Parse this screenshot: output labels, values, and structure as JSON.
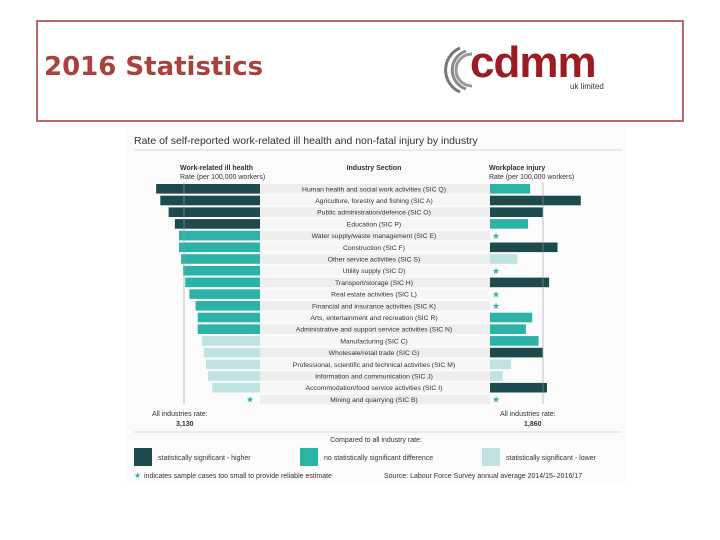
{
  "slide": {
    "title": "2016 Statistics"
  },
  "logo": {
    "name": "cdmm",
    "sub": "uk limited"
  },
  "chart_data": {
    "type": "bar",
    "title": "Rate of self-reported work-related ill health and non-fatal injury by industry",
    "left_header": "Work-related ill health",
    "left_subheader": "Rate (per 100,000 workers)",
    "center_header": "Industry Section",
    "right_header": "Workplace injury",
    "right_subheader": "Rate (per 100,000 workers)",
    "categories": [
      "Human health and social work activities (SIC Q)",
      "Agriculture, forestry and fishing (SIC A)",
      "Public administration/defence (SIC O)",
      "Education (SIC P)",
      "Water supply/waste management (SIC E)",
      "Construction (SIC F)",
      "Other service activities (SIC S)",
      "Utility supply (SIC D)",
      "Transport/storage (SIC H)",
      "Real estate activities (SIC L)",
      "Financial and insurance activities (SIC K)",
      "Arts, entertainment and recreation (SIC R)",
      "Administrative and support service activities (SIC N)",
      "Manufacturing (SIC C)",
      "Wholesale/retail trade (SIC G)",
      "Professional, scientific and technical activities (SIC M)",
      "Information and communication (SIC J)",
      "Accommodation/food service activities (SIC I)",
      "Mining and quarrying (SIC B)"
    ],
    "series": [
      {
        "name": "Work-related ill health",
        "values": [
          5000,
          4800,
          4400,
          4100,
          3900,
          3900,
          3800,
          3700,
          3600,
          3400,
          3100,
          3000,
          3000,
          2800,
          2700,
          2600,
          2500,
          2300,
          null
        ],
        "significance": [
          "higher",
          "higher",
          "higher",
          "higher",
          "none",
          "none",
          "none",
          "none",
          "none",
          "none",
          "none",
          "none",
          "none",
          "lower",
          "lower",
          "lower",
          "lower",
          "lower",
          "unreliable"
        ]
      },
      {
        "name": "Workplace injury",
        "values": [
          1900,
          4300,
          2500,
          1800,
          null,
          3200,
          1300,
          null,
          2800,
          null,
          null,
          2000,
          1700,
          2300,
          2500,
          1000,
          600,
          2700,
          null
        ],
        "significance": [
          "none",
          "higher",
          "higher",
          "none",
          "unreliable",
          "higher",
          "lower",
          "unreliable",
          "higher",
          "unreliable",
          "unreliable",
          "none",
          "none",
          "none",
          "higher",
          "lower",
          "lower",
          "higher",
          "unreliable"
        ]
      }
    ],
    "all_industries": {
      "left_label": "All industries rate:",
      "left_value": "3,130",
      "right_label": "All industries rate:",
      "right_value": "1,860"
    },
    "legend": {
      "heading": "Compared to all industry rate:",
      "items": [
        {
          "key": "higher",
          "label": "statistically significant - higher",
          "color": "#1c4a4d"
        },
        {
          "key": "none",
          "label": "no statistically significant difference",
          "color": "#2bb3a8"
        },
        {
          "key": "lower",
          "label": "statistically significant - lower",
          "color": "#bfe3e1"
        }
      ],
      "note": "indicates sample cases too small to provide reliable estimate",
      "source": "Source: Labour Force Survey annual average 2014/15–2016/17"
    },
    "star": "★"
  }
}
